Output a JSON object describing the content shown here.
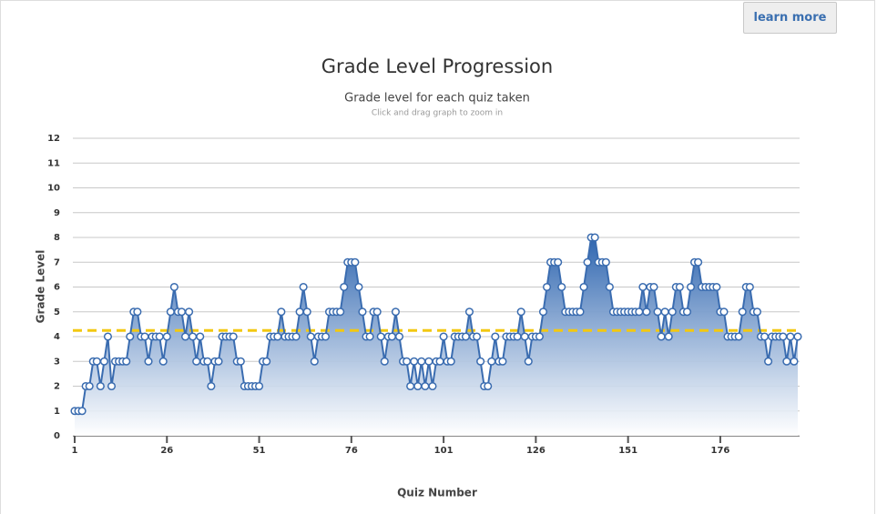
{
  "button": {
    "label": "learn more"
  },
  "chart_data": {
    "type": "area",
    "title": "Grade Level Progression",
    "subtitle": "Grade level for each quiz taken",
    "note": "Click and drag graph to zoom in",
    "x_label": "Quiz Number",
    "y_label": "Grade Level",
    "color": "#3a6cb0",
    "x": [
      1,
      2,
      3,
      4,
      5,
      6,
      7,
      8,
      9,
      10,
      11,
      12,
      13,
      14,
      15,
      16,
      17,
      18,
      19,
      20,
      21,
      22,
      23,
      24,
      25,
      26,
      27,
      28,
      29,
      30,
      31,
      32,
      33,
      34,
      35,
      36,
      37,
      38,
      39,
      40,
      41,
      42,
      43,
      44,
      45,
      46,
      47,
      48,
      49,
      50,
      51,
      52,
      53,
      54,
      55,
      56,
      57,
      58,
      59,
      60,
      61,
      62,
      63,
      64,
      65,
      66,
      67,
      68,
      69,
      70,
      71,
      72,
      73,
      74,
      75,
      76,
      77,
      78,
      79,
      80,
      81,
      82,
      83,
      84,
      85,
      86,
      87,
      88,
      89,
      90,
      91,
      92,
      93,
      94,
      95,
      96,
      97,
      98,
      99,
      100,
      101,
      102,
      103,
      104,
      105,
      106,
      107,
      108,
      109,
      110,
      111,
      112,
      113,
      114,
      115,
      116,
      117,
      118,
      119,
      120,
      121,
      122,
      123,
      124,
      125,
      126,
      127,
      128,
      129,
      130,
      131,
      132,
      133,
      134,
      135,
      136,
      137,
      138,
      139,
      140,
      141,
      142,
      143,
      144,
      145,
      146,
      147,
      148,
      149,
      150,
      151,
      152,
      153,
      154,
      155,
      156,
      157,
      158,
      159,
      160,
      161,
      162,
      163,
      164,
      165,
      166,
      167,
      168,
      169,
      170,
      171,
      172,
      173,
      174,
      175,
      176,
      177,
      178,
      179,
      180,
      181,
      182,
      183,
      184,
      185,
      186,
      187,
      188,
      189,
      190,
      191,
      192,
      193,
      194,
      195,
      196,
      197
    ],
    "values": [
      1,
      1,
      1,
      2,
      2,
      3,
      3,
      2,
      3,
      4,
      2,
      3,
      3,
      3,
      3,
      4,
      5,
      5,
      4,
      4,
      3,
      4,
      4,
      4,
      3,
      4,
      5,
      6,
      5,
      5,
      4,
      5,
      4,
      3,
      4,
      3,
      3,
      2,
      3,
      3,
      4,
      4,
      4,
      4,
      3,
      3,
      2,
      2,
      2,
      2,
      2,
      3,
      3,
      4,
      4,
      4,
      5,
      4,
      4,
      4,
      4,
      5,
      6,
      5,
      4,
      3,
      4,
      4,
      4,
      5,
      5,
      5,
      5,
      6,
      7,
      7,
      7,
      6,
      5,
      4,
      4,
      5,
      5,
      4,
      3,
      4,
      4,
      5,
      4,
      3,
      3,
      2,
      3,
      2,
      3,
      2,
      3,
      2,
      3,
      3,
      4,
      3,
      3,
      4,
      4,
      4,
      4,
      5,
      4,
      4,
      3,
      2,
      2,
      3,
      4,
      3,
      3,
      4,
      4,
      4,
      4,
      5,
      4,
      3,
      4,
      4,
      4,
      5,
      6,
      7,
      7,
      7,
      6,
      5,
      5,
      5,
      5,
      5,
      6,
      7,
      8,
      8,
      7,
      7,
      7,
      6,
      5,
      5,
      5,
      5,
      5,
      5,
      5,
      5,
      6,
      5,
      6,
      6,
      5,
      4,
      5,
      4,
      5,
      6,
      6,
      5,
      5,
      6,
      7,
      7,
      6,
      6,
      6,
      6,
      6,
      5,
      5,
      4,
      4,
      4,
      4,
      5,
      6,
      6,
      5,
      5,
      4,
      4,
      3,
      4,
      4,
      4,
      4,
      3,
      4,
      3,
      4
    ],
    "average_line": {
      "value": 4.25,
      "color": "#f2c811"
    },
    "xlim": [
      1,
      197
    ],
    "xticks": [
      1,
      26,
      51,
      76,
      101,
      126,
      151,
      176
    ],
    "ylim": [
      0,
      12
    ],
    "yticks": [
      0,
      1,
      2,
      3,
      4,
      5,
      6,
      7,
      8,
      9,
      10,
      11,
      12
    ],
    "grid": true
  }
}
